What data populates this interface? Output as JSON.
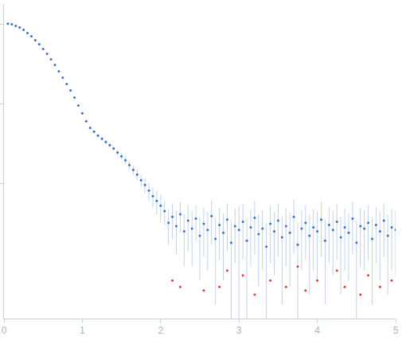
{
  "chart_data": {
    "type": "scatter",
    "log": "y",
    "grid": false,
    "tick_labels": "x",
    "xlim": [
      0,
      5
    ],
    "xticks": [
      0,
      1,
      2,
      3,
      4,
      5
    ],
    "ylim": [
      0.0002,
      1.8
    ],
    "yticks": [
      0.01,
      0.1,
      1
    ],
    "series": [
      {
        "color": "#3a6fc4",
        "marker": "circle",
        "x": [
          0.05,
          0.1,
          0.15,
          0.2,
          0.25,
          0.3,
          0.35,
          0.4,
          0.45,
          0.5,
          0.55,
          0.6,
          0.65,
          0.7,
          0.75,
          0.8,
          0.85,
          0.9,
          0.95,
          1.0,
          1.05,
          1.1,
          1.15,
          1.2,
          1.25,
          1.3,
          1.35,
          1.4,
          1.45,
          1.5,
          1.55,
          1.6,
          1.65,
          1.7,
          1.75,
          1.8,
          1.85,
          1.9,
          1.95,
          2.0,
          2.05,
          2.1,
          2.15,
          2.2,
          2.25,
          2.3,
          2.35,
          2.4,
          2.45,
          2.5,
          2.55,
          2.6,
          2.65,
          2.7,
          2.75,
          2.8,
          2.85,
          2.9,
          2.95,
          3.0,
          3.05,
          3.1,
          3.15,
          3.2,
          3.25,
          3.3,
          3.35,
          3.4,
          3.45,
          3.5,
          3.55,
          3.6,
          3.65,
          3.7,
          3.75,
          3.8,
          3.85,
          3.9,
          3.95,
          4.0,
          4.05,
          4.1,
          4.15,
          4.2,
          4.25,
          4.3,
          4.35,
          4.4,
          4.45,
          4.5,
          4.55,
          4.6,
          4.65,
          4.7,
          4.75,
          4.8,
          4.85,
          4.9,
          4.95,
          5.0
        ],
        "values": [
          1.02,
          1.0,
          0.955,
          0.912,
          0.851,
          0.776,
          0.708,
          0.631,
          0.562,
          0.49,
          0.427,
          0.363,
          0.309,
          0.257,
          0.214,
          0.178,
          0.148,
          0.12,
          0.0955,
          0.0759,
          0.0603,
          0.0501,
          0.0447,
          0.0398,
          0.0363,
          0.0331,
          0.0302,
          0.0275,
          0.0245,
          0.0219,
          0.0195,
          0.017,
          0.0148,
          0.0129,
          0.011,
          0.00955,
          0.00813,
          0.00692,
          0.00603,
          0.00525,
          0.0045,
          0.0032,
          0.0038,
          0.0029,
          0.0041,
          0.0025,
          0.0034,
          0.0027,
          0.0036,
          0.0022,
          0.0031,
          0.0026,
          0.0039,
          0.002,
          0.003,
          0.0024,
          0.0035,
          0.0018,
          0.0029,
          0.0026,
          0.0033,
          0.0019,
          0.0028,
          0.0037,
          0.0023,
          0.0027,
          0.0016,
          0.0031,
          0.0025,
          0.0034,
          0.0021,
          0.0029,
          0.0024,
          0.0038,
          0.0017,
          0.0027,
          0.0032,
          0.0022,
          0.0028,
          0.0025,
          0.0035,
          0.0019,
          0.003,
          0.0026,
          0.0033,
          0.0021,
          0.0028,
          0.0024,
          0.0036,
          0.0018,
          0.0029,
          0.0027,
          0.0032,
          0.002,
          0.003,
          0.0025,
          0.0034,
          0.0022,
          0.0028,
          0.0026
        ],
        "error": [
          0.003,
          0.003,
          0.003,
          0.003,
          0.003,
          0.003,
          0.003,
          0.003,
          0.003,
          0.003,
          0.003,
          0.003,
          0.003,
          0.003,
          0.002,
          0.002,
          0.002,
          0.002,
          0.002,
          0.002,
          0.002,
          0.002,
          0.002,
          0.002,
          0.002,
          0.002,
          0.002,
          0.002,
          0.002,
          0.002,
          0.002,
          0.002,
          0.002,
          0.002,
          0.002,
          0.002,
          0.002,
          0.002,
          0.002,
          0.002,
          0.0015,
          0.0015,
          0.0018,
          0.0016,
          0.0017,
          0.0016,
          0.002,
          0.0018,
          0.0017,
          0.0016,
          0.0019,
          0.0018,
          0.0022,
          0.0017,
          0.0019,
          0.0018,
          0.0021,
          0.0016,
          0.0019,
          0.0025,
          0.0022,
          0.0017,
          0.0019,
          0.0024,
          0.0018,
          0.0019,
          0.0015,
          0.0021,
          0.0018,
          0.0022,
          0.0018,
          0.002,
          0.0019,
          0.0025,
          0.0015,
          0.0019,
          0.0021,
          0.0018,
          0.002,
          0.0019,
          0.0023,
          0.0016,
          0.002,
          0.0019,
          0.0022,
          0.0017,
          0.002,
          0.0018,
          0.0023,
          0.0016,
          0.002,
          0.0019,
          0.0021,
          0.0017,
          0.002,
          0.0019,
          0.0022,
          0.0018,
          0.002,
          0.0019
        ]
      },
      {
        "color": "#e03a3a",
        "marker": "circle",
        "x": [
          2.15,
          2.25,
          2.55,
          2.75,
          2.85,
          3.05,
          3.2,
          3.4,
          3.6,
          3.75,
          3.85,
          4.0,
          4.25,
          4.35,
          4.55,
          4.65,
          4.8,
          4.95
        ],
        "values": [
          0.0006,
          0.0005,
          0.00045,
          0.0005,
          0.0008,
          0.0007,
          0.0004,
          0.0006,
          0.0005,
          0.0009,
          0.00045,
          0.0006,
          0.0008,
          0.0005,
          0.0004,
          0.0007,
          0.0005,
          0.0006
        ]
      }
    ]
  }
}
